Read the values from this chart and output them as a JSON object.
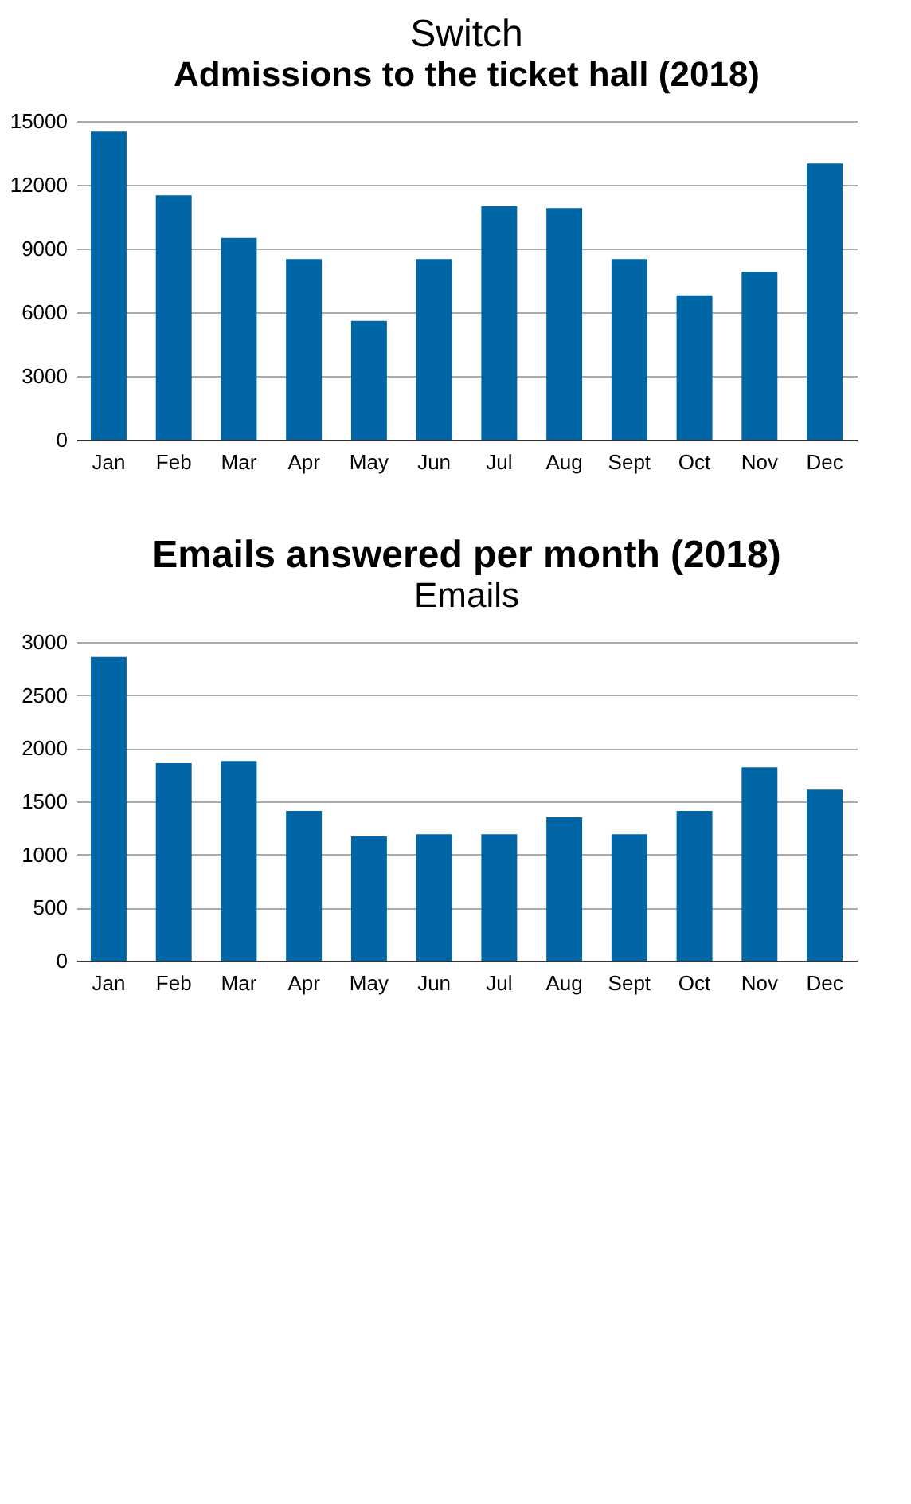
{
  "chart_data": [
    {
      "type": "bar",
      "title": "Switch",
      "subtitle": "Admissions to the ticket hall (2018)",
      "categories": [
        "Jan",
        "Feb",
        "Mar",
        "Apr",
        "May",
        "Jun",
        "Jul",
        "Aug",
        "Sept",
        "Oct",
        "Nov",
        "Dec"
      ],
      "values": [
        14500,
        11500,
        9500,
        8500,
        5600,
        8500,
        11000,
        10900,
        8500,
        6800,
        7900,
        13000
      ],
      "color": "#0066a6",
      "ylim": [
        0,
        15000
      ],
      "yticks": [
        0,
        3000,
        6000,
        9000,
        12000,
        15000
      ],
      "grid": "y"
    },
    {
      "type": "bar",
      "title": "Emails answered per month (2018)",
      "subtitle": "Emails",
      "categories": [
        "Jan",
        "Feb",
        "Mar",
        "Apr",
        "May",
        "Jun",
        "Jul",
        "Aug",
        "Sept",
        "Oct",
        "Nov",
        "Dec"
      ],
      "values": [
        2860,
        1860,
        1880,
        1410,
        1170,
        1190,
        1190,
        1350,
        1190,
        1410,
        1820,
        1610
      ],
      "color": "#0066a6",
      "ylim": [
        0,
        3000
      ],
      "yticks": [
        0,
        500,
        1000,
        1500,
        2000,
        2500,
        3000
      ],
      "grid": "y"
    }
  ]
}
